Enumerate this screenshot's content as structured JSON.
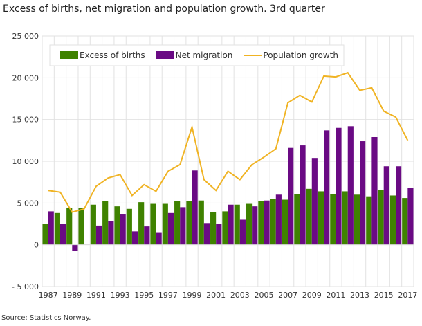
{
  "chart_data": {
    "type": "bar",
    "title": "Excess of births, net migration and population growth. 3rd quarter",
    "source": "Source: Statistics Norway.",
    "categories": [
      "1987",
      "1988",
      "1989",
      "1990",
      "1991",
      "1992",
      "1993",
      "1994",
      "1995",
      "1996",
      "1997",
      "1998",
      "1999",
      "2000",
      "2001",
      "2002",
      "2003",
      "2004",
      "2005",
      "2006",
      "2007",
      "2008",
      "2009",
      "2010",
      "2011",
      "2012",
      "2013",
      "2014",
      "2015",
      "2016",
      "2017"
    ],
    "series": [
      {
        "name": "Excess of births",
        "kind": "bar",
        "color": "#3f8200",
        "values": [
          2500,
          3800,
          4400,
          4400,
          4800,
          5200,
          4600,
          4300,
          5100,
          4900,
          4900,
          5200,
          5200,
          5300,
          3900,
          4000,
          4800,
          4900,
          5200,
          5500,
          5400,
          6100,
          6700,
          6400,
          6100,
          6400,
          6000,
          5800,
          6600,
          5900,
          5600
        ]
      },
      {
        "name": "Net migration",
        "kind": "bar",
        "color": "#6a0a84",
        "values": [
          4000,
          2500,
          -700,
          0,
          2300,
          2800,
          3700,
          1600,
          2200,
          1500,
          3800,
          4500,
          8900,
          2600,
          2500,
          4800,
          3000,
          4600,
          5300,
          6000,
          11600,
          11900,
          10400,
          13700,
          14000,
          14200,
          12400,
          12900,
          9400,
          9400,
          6800
        ]
      },
      {
        "name": "Population growth",
        "kind": "line",
        "color": "#f0b323",
        "values": [
          6500,
          6300,
          3900,
          4300,
          7000,
          8000,
          8400,
          5900,
          7200,
          6400,
          8800,
          9600,
          14100,
          7800,
          6500,
          8800,
          7800,
          9600,
          10500,
          11500,
          17000,
          17900,
          17100,
          20200,
          20100,
          20600,
          18500,
          18800,
          16000,
          15300,
          12500
        ]
      }
    ],
    "yticks": [
      -5000,
      0,
      5000,
      10000,
      15000,
      20000,
      25000
    ],
    "ytick_labels": [
      "- 5 000",
      "0",
      "5 000",
      "10 000",
      "15 000",
      "20 000",
      "25 000"
    ],
    "ylim": [
      -5000,
      25000
    ],
    "grid": true,
    "legend": "top"
  }
}
